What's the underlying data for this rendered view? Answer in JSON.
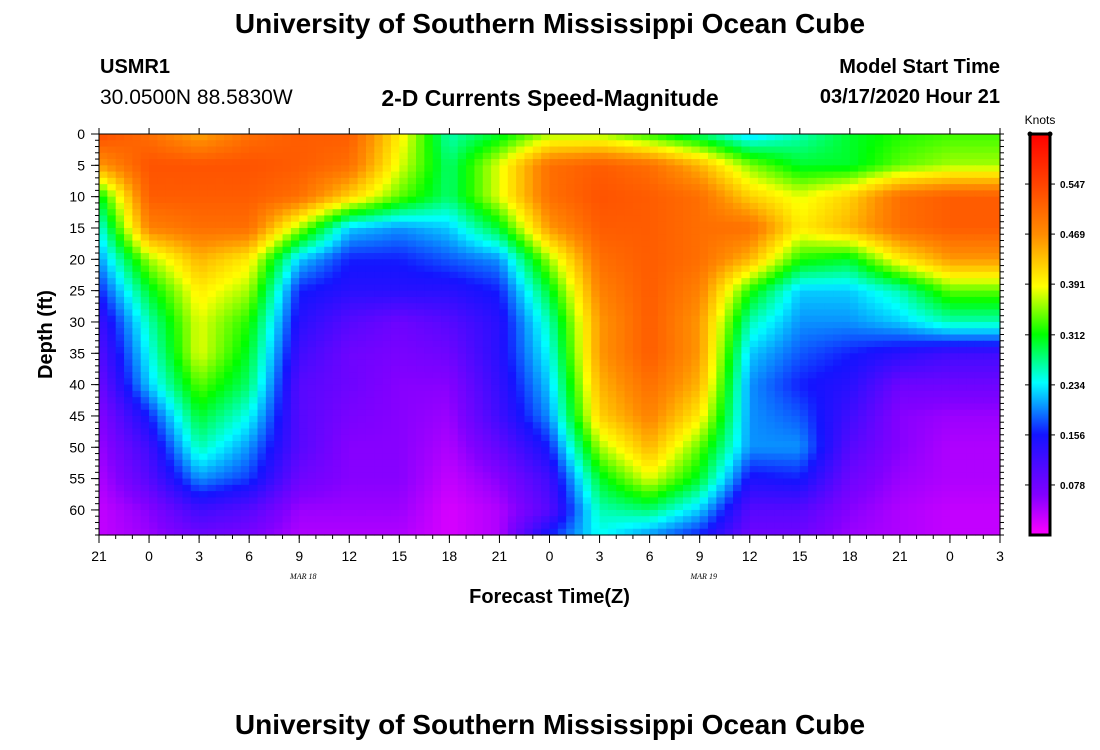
{
  "header": {
    "title_top": "University of Southern Mississippi Ocean Cube",
    "title_bottom": "University of Southern Mississippi Ocean Cube",
    "station_id": "USMR1",
    "coords": "30.0500N 88.5830W",
    "subtitle": "2-D Currents Speed-Magnitude",
    "model_start_label": "Model Start Time",
    "model_start_value": "03/17/2020 Hour 21"
  },
  "chart_data": {
    "type": "heatmap",
    "title": "2-D Currents Speed-Magnitude",
    "xlabel": "Forecast Time(Z)",
    "ylabel": "Depth (ft)",
    "x_ticks": [
      "21",
      "0",
      "3",
      "6",
      "9",
      "12",
      "15",
      "18",
      "21",
      "0",
      "3",
      "6",
      "9",
      "12",
      "15",
      "18",
      "21",
      "0",
      "3"
    ],
    "x_range_hours": [
      0,
      54
    ],
    "date_labels": [
      {
        "text": "MAR 18",
        "hour": 15
      },
      {
        "text": "MAR 19",
        "hour": 39
      }
    ],
    "y_ticks": [
      0,
      5,
      10,
      15,
      20,
      25,
      30,
      35,
      40,
      45,
      50,
      55,
      60
    ],
    "y_range_ft": [
      0,
      64
    ],
    "colorbar": {
      "label": "Knots",
      "ticks": [
        "0.547",
        "0.469",
        "0.391",
        "0.312",
        "0.234",
        "0.156",
        "0.078"
      ],
      "tick_values": [
        0.547,
        0.469,
        0.391,
        0.312,
        0.234,
        0.156,
        0.078
      ],
      "range": [
        0,
        0.625
      ]
    },
    "series": [
      {
        "name": "Speed (knots)",
        "note": "grid rows = depth (ft), cols = forecast hour since 03/17 21Z",
        "hours": [
          0,
          3,
          6,
          9,
          12,
          15,
          18,
          21,
          24,
          27,
          30,
          33,
          36,
          39,
          42,
          45,
          48,
          51,
          54
        ],
        "depths": [
          0,
          5,
          10,
          15,
          20,
          25,
          30,
          35,
          40,
          45,
          50,
          55,
          60,
          64
        ],
        "values": [
          [
            0.54,
            0.5,
            0.45,
            0.5,
            0.52,
            0.52,
            0.4,
            0.26,
            0.3,
            0.36,
            0.36,
            0.32,
            0.28,
            0.22,
            0.26,
            0.3,
            0.32,
            0.33,
            0.33
          ],
          [
            0.46,
            0.53,
            0.53,
            0.53,
            0.52,
            0.5,
            0.38,
            0.28,
            0.38,
            0.5,
            0.52,
            0.5,
            0.44,
            0.35,
            0.3,
            0.3,
            0.34,
            0.36,
            0.36
          ],
          [
            0.3,
            0.52,
            0.52,
            0.52,
            0.5,
            0.42,
            0.34,
            0.28,
            0.38,
            0.5,
            0.53,
            0.52,
            0.5,
            0.42,
            0.38,
            0.42,
            0.5,
            0.52,
            0.52
          ],
          [
            0.24,
            0.48,
            0.5,
            0.5,
            0.36,
            0.22,
            0.2,
            0.22,
            0.3,
            0.46,
            0.52,
            0.52,
            0.5,
            0.5,
            0.4,
            0.44,
            0.5,
            0.52,
            0.52
          ],
          [
            0.2,
            0.36,
            0.44,
            0.4,
            0.22,
            0.16,
            0.16,
            0.18,
            0.2,
            0.36,
            0.5,
            0.52,
            0.5,
            0.44,
            0.32,
            0.3,
            0.4,
            0.46,
            0.46
          ],
          [
            0.16,
            0.3,
            0.4,
            0.36,
            0.16,
            0.14,
            0.14,
            0.14,
            0.16,
            0.3,
            0.48,
            0.52,
            0.48,
            0.32,
            0.22,
            0.22,
            0.26,
            0.34,
            0.34
          ],
          [
            0.12,
            0.26,
            0.38,
            0.32,
            0.14,
            0.1,
            0.08,
            0.1,
            0.14,
            0.26,
            0.46,
            0.52,
            0.46,
            0.26,
            0.2,
            0.2,
            0.22,
            0.26,
            0.26
          ],
          [
            0.1,
            0.24,
            0.38,
            0.3,
            0.12,
            0.08,
            0.07,
            0.08,
            0.14,
            0.24,
            0.46,
            0.52,
            0.46,
            0.22,
            0.18,
            0.16,
            0.14,
            0.12,
            0.12
          ],
          [
            0.08,
            0.22,
            0.34,
            0.28,
            0.1,
            0.08,
            0.06,
            0.06,
            0.13,
            0.22,
            0.44,
            0.5,
            0.44,
            0.2,
            0.16,
            0.14,
            0.08,
            0.08,
            0.08
          ],
          [
            0.06,
            0.16,
            0.3,
            0.24,
            0.1,
            0.07,
            0.06,
            0.05,
            0.12,
            0.2,
            0.42,
            0.48,
            0.4,
            0.2,
            0.18,
            0.12,
            0.06,
            0.05,
            0.05
          ],
          [
            0.05,
            0.12,
            0.26,
            0.2,
            0.1,
            0.06,
            0.06,
            0.04,
            0.09,
            0.16,
            0.36,
            0.44,
            0.34,
            0.2,
            0.2,
            0.1,
            0.06,
            0.04,
            0.04
          ],
          [
            0.04,
            0.1,
            0.2,
            0.17,
            0.08,
            0.06,
            0.06,
            0.03,
            0.06,
            0.12,
            0.3,
            0.38,
            0.3,
            0.15,
            0.16,
            0.08,
            0.05,
            0.04,
            0.04
          ],
          [
            0.03,
            0.06,
            0.12,
            0.1,
            0.05,
            0.05,
            0.05,
            0.02,
            0.04,
            0.1,
            0.26,
            0.28,
            0.22,
            0.1,
            0.1,
            0.06,
            0.04,
            0.03,
            0.03
          ],
          [
            0.03,
            0.05,
            0.08,
            0.07,
            0.04,
            0.04,
            0.04,
            0.02,
            0.04,
            0.16,
            0.24,
            0.2,
            0.16,
            0.08,
            0.08,
            0.05,
            0.04,
            0.03,
            0.03
          ]
        ]
      }
    ]
  }
}
